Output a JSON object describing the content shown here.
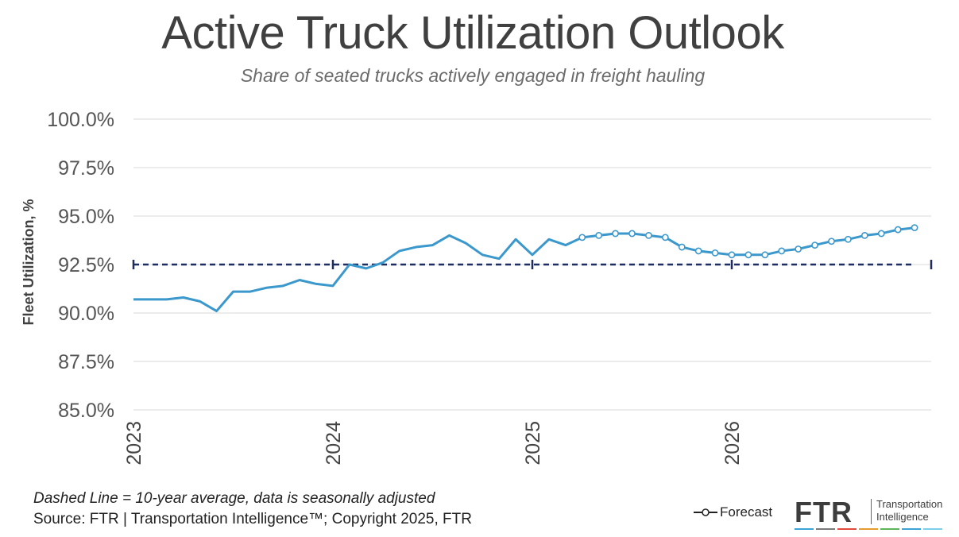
{
  "title": "Active Truck Utilization Outlook",
  "subtitle": "Share of seated trucks actively engaged in freight hauling",
  "footer": {
    "note": "Dashed Line = 10-year average, data is seasonally adjusted",
    "source": "Source: FTR | Transportation Intelligence™; Copyright 2025, FTR"
  },
  "logo": {
    "mark": "FTR",
    "line1": "Transportation",
    "line2": "Intelligence",
    "bar_colors": [
      "#3aa3d8",
      "#7a7a7a",
      "#e24a3b",
      "#e59b2e",
      "#5fb65a",
      "#3aa3d8",
      "#7ad0e8"
    ]
  },
  "colors": {
    "actual": "#3b98cc",
    "average": "#1f2d5c",
    "grid": "#d9d9d9"
  },
  "chart_data": {
    "type": "line",
    "title": "Active Truck Utilization Outlook",
    "subtitle": "Share of seated trucks actively engaged in freight hauling",
    "ylabel": "Fleet Utilization, %",
    "xlabel": "",
    "ylim": [
      85.0,
      100.0
    ],
    "yticks": [
      85.0,
      87.5,
      90.0,
      92.5,
      95.0,
      97.5,
      100.0
    ],
    "ytick_labels": [
      "85.0%",
      "87.5%",
      "90.0%",
      "92.5%",
      "95.0%",
      "97.5%",
      "100.0%"
    ],
    "xlim": [
      2023.0,
      2027.0
    ],
    "xticks": [
      2023,
      2024,
      2025,
      2026
    ],
    "xtick_labels": [
      "2023",
      "2024",
      "2025",
      "2026"
    ],
    "grid": true,
    "legend": [
      {
        "label": "Forecast",
        "position": "bottom-right"
      }
    ],
    "series": [
      {
        "kind": "actual",
        "x": [
          "2023-01",
          "2023-02",
          "2023-03",
          "2023-04",
          "2023-05",
          "2023-06",
          "2023-07",
          "2023-08",
          "2023-09",
          "2023-10",
          "2023-11",
          "2023-12",
          "2024-01",
          "2024-02",
          "2024-03",
          "2024-04",
          "2024-05",
          "2024-06",
          "2024-07",
          "2024-08",
          "2024-09",
          "2024-10",
          "2024-11",
          "2024-12",
          "2025-01",
          "2025-02",
          "2025-03",
          "2025-04"
        ],
        "values": [
          90.7,
          90.7,
          90.7,
          90.8,
          90.6,
          90.1,
          91.1,
          91.1,
          91.3,
          91.4,
          91.7,
          91.5,
          91.4,
          92.5,
          92.3,
          92.6,
          93.2,
          93.4,
          93.5,
          94.0,
          93.6,
          93.0,
          92.8,
          93.8,
          93.0,
          93.8,
          93.5,
          93.9
        ]
      },
      {
        "kind": "forecast",
        "name": "Forecast",
        "x": [
          "2025-04",
          "2025-05",
          "2025-06",
          "2025-07",
          "2025-08",
          "2025-09",
          "2025-10",
          "2025-11",
          "2025-12",
          "2026-01",
          "2026-02",
          "2026-03",
          "2026-04",
          "2026-05",
          "2026-06",
          "2026-07",
          "2026-08",
          "2026-09",
          "2026-10",
          "2026-11",
          "2026-12"
        ],
        "values": [
          93.9,
          94.0,
          94.1,
          94.1,
          94.0,
          93.9,
          93.4,
          93.2,
          93.1,
          93.0,
          93.0,
          93.0,
          93.2,
          93.3,
          93.5,
          93.7,
          93.8,
          94.0,
          94.1,
          94.3,
          94.4
        ]
      },
      {
        "kind": "average",
        "x": [
          "2023-01",
          "2026-12"
        ],
        "values": [
          92.5,
          92.5
        ]
      }
    ]
  }
}
